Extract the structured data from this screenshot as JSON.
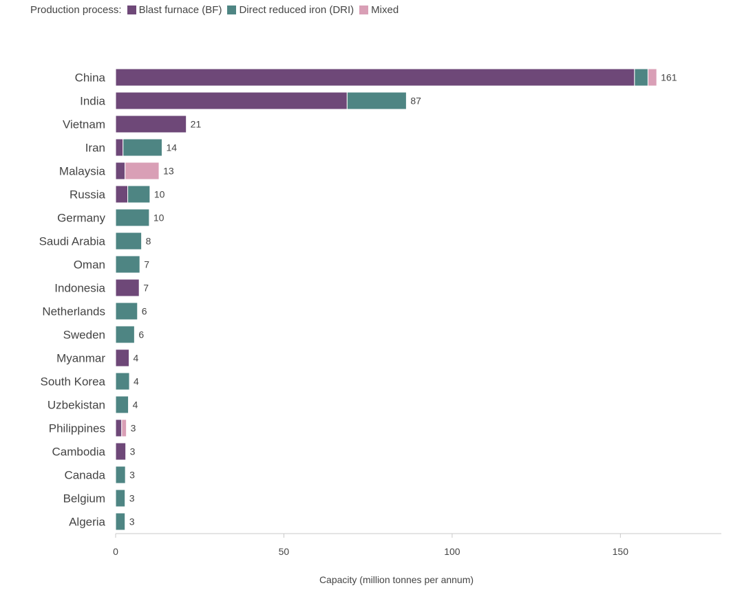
{
  "chart_data": {
    "type": "bar",
    "orientation": "horizontal",
    "stacked": true,
    "legend_title": "Production process:",
    "series": [
      {
        "name": "Blast furnace (BF)",
        "color": "#6e4878",
        "values": [
          154.2,
          68.8,
          21,
          2.2,
          2.8,
          3.6,
          0,
          0,
          0,
          7,
          0,
          0,
          4,
          0,
          0,
          1.8,
          3,
          0,
          0,
          0
        ]
      },
      {
        "name": "Direct reduced iron (DRI)",
        "color": "#4e8583",
        "values": [
          4,
          17.6,
          0,
          11.6,
          0,
          6.6,
          10,
          7.7,
          7.2,
          0,
          6.5,
          5.6,
          0,
          4.1,
          3.8,
          0,
          0,
          2.9,
          2.8,
          2.8
        ]
      },
      {
        "name": "Mixed",
        "color": "#d99fb6",
        "values": [
          2.6,
          0,
          0,
          0,
          10.1,
          0,
          0,
          0,
          0,
          0,
          0,
          0,
          0,
          0,
          0,
          1.4,
          0,
          0,
          0,
          0
        ]
      }
    ],
    "categories": [
      "China",
      "India",
      "Vietnam",
      "Iran",
      "Malaysia",
      "Russia",
      "Germany",
      "Saudi Arabia",
      "Oman",
      "Indonesia",
      "Netherlands",
      "Sweden",
      "Myanmar",
      "South Korea",
      "Uzbekistan",
      "Philippines",
      "Cambodia",
      "Canada",
      "Belgium",
      "Algeria"
    ],
    "totals": [
      "161",
      "87",
      "21",
      "14",
      "13",
      "10",
      "10",
      "8",
      "7",
      "7",
      "6",
      "6",
      "4",
      "4",
      "4",
      "3",
      "3",
      "3",
      "3",
      "3"
    ],
    "xlim": [
      0,
      180
    ],
    "xticks": [
      0,
      50,
      100,
      150
    ],
    "xtick_labels": [
      "0",
      "50",
      "100",
      "150"
    ],
    "xlabel": "Capacity (million tonnes per annum)",
    "ylabel": ""
  }
}
